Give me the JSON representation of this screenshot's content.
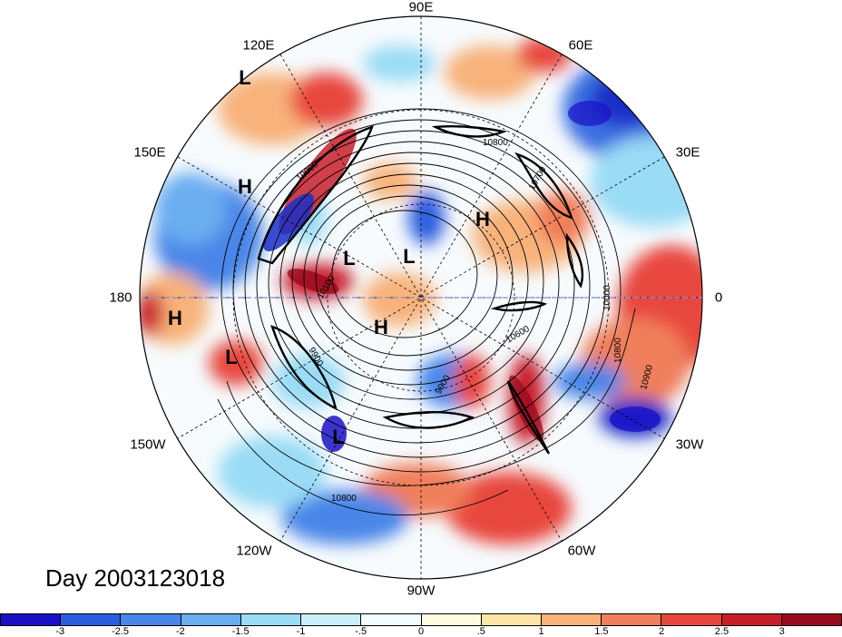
{
  "map": {
    "longitude_labels": [
      {
        "id": "lon-90e",
        "text": "90E"
      },
      {
        "id": "lon-60e",
        "text": "60E"
      },
      {
        "id": "lon-120e",
        "text": "120E"
      },
      {
        "id": "lon-150e",
        "text": "150E"
      },
      {
        "id": "lon-30e",
        "text": "30E"
      },
      {
        "id": "lon-180",
        "text": "180"
      },
      {
        "id": "lon-0",
        "text": "0"
      },
      {
        "id": "lon-150w",
        "text": "150W"
      },
      {
        "id": "lon-30w",
        "text": "30W"
      },
      {
        "id": "lon-120w",
        "text": "120W"
      },
      {
        "id": "lon-60w",
        "text": "60W"
      },
      {
        "id": "lon-90w",
        "text": "90W"
      }
    ],
    "pressure_centers": [
      {
        "id": "center-l-1",
        "text": "L"
      },
      {
        "id": "center-h-1",
        "text": "H"
      },
      {
        "id": "center-h-2",
        "text": "H"
      },
      {
        "id": "center-l-2",
        "text": "L"
      },
      {
        "id": "center-l-3",
        "text": "L"
      },
      {
        "id": "center-h-3",
        "text": "H"
      },
      {
        "id": "center-h-4",
        "text": "H"
      },
      {
        "id": "center-l-4",
        "text": "L"
      },
      {
        "id": "center-l-5",
        "text": "L"
      }
    ],
    "contour_labels": [
      "10800",
      "10900",
      "10700",
      "10600",
      "10100",
      "9900",
      "9900",
      "10800",
      "10900",
      "10800",
      "10000"
    ]
  },
  "day_label": "Day 2003123018",
  "colorbar": {
    "colors": [
      "#1a10c8",
      "#2a5de0",
      "#4a86e8",
      "#6aaef0",
      "#9adcf5",
      "#c8f0fa",
      "#f2fbfd",
      "#fdfbe0",
      "#fde6a8",
      "#f8b27a",
      "#f07f5c",
      "#e8463c",
      "#c81e2a",
      "#9a0a1e"
    ],
    "ticks": [
      "-3",
      "-2.5",
      "-2",
      "-1.5",
      "-1",
      "-.5",
      "0",
      ".5",
      "1",
      "1.5",
      "2",
      "2.5",
      "3"
    ]
  }
}
